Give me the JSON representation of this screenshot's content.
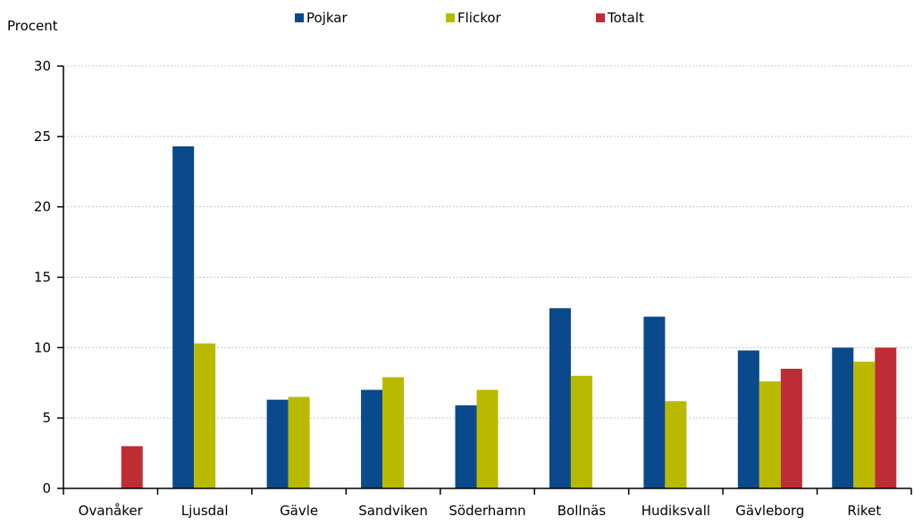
{
  "chart_data": {
    "type": "bar",
    "ylabel": "Procent",
    "ylim": [
      0,
      30
    ],
    "yticks": [
      0,
      5,
      10,
      15,
      20,
      25,
      30
    ],
    "grid": true,
    "legend_position": "top-center",
    "categories": [
      "Ovanåker",
      "Ljusdal",
      "Gävle",
      "Sandviken",
      "Söderhamn",
      "Bollnäs",
      "Hudiksvall",
      "Gävleborg",
      "Riket"
    ],
    "series": [
      {
        "name": "Pojkar",
        "color": "#0a4a8c",
        "values": [
          null,
          24.3,
          6.3,
          7.0,
          5.9,
          12.8,
          12.2,
          9.8,
          10.0
        ]
      },
      {
        "name": "Flickor",
        "color": "#b9ba00",
        "values": [
          null,
          10.3,
          6.5,
          7.9,
          7.0,
          8.0,
          6.2,
          7.6,
          9.0
        ]
      },
      {
        "name": "Totalt",
        "color": "#be2d35",
        "values": [
          3.0,
          null,
          null,
          null,
          null,
          null,
          null,
          8.5,
          10.0
        ]
      }
    ]
  }
}
